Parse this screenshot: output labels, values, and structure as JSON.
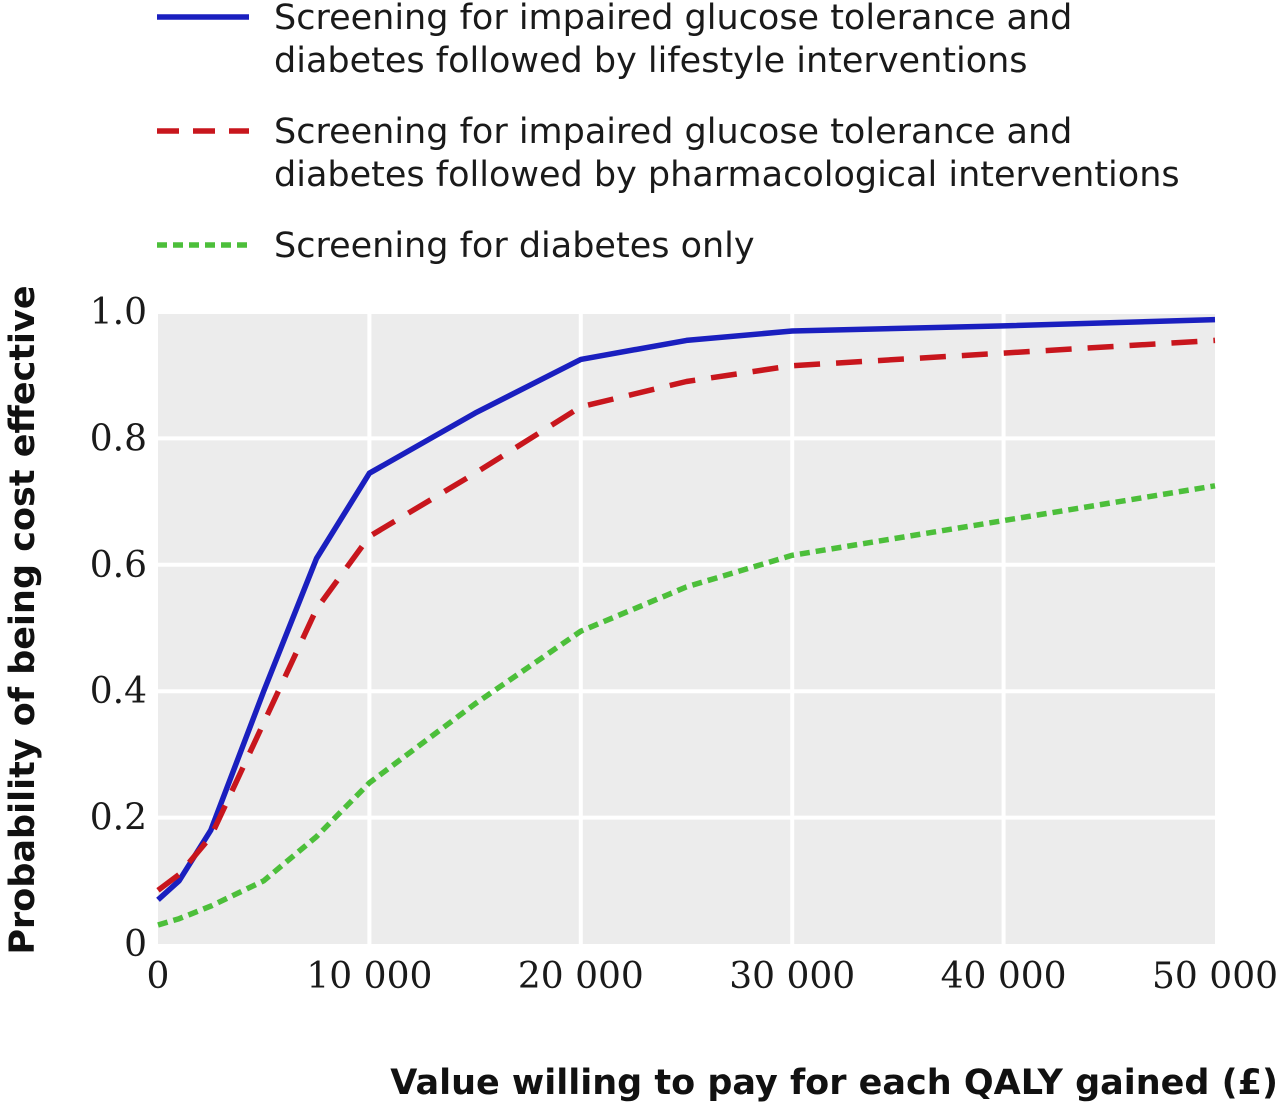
{
  "chart_data": {
    "type": "line",
    "title": "",
    "xlabel": "Value willing to pay for each QALY gained (£)",
    "ylabel": "Probability of being cost effective",
    "xlim": [
      0,
      50000
    ],
    "ylim": [
      0,
      1.0
    ],
    "x_ticks": [
      0,
      10000,
      20000,
      30000,
      40000,
      50000
    ],
    "x_tick_labels": [
      "0",
      "10 000",
      "20 000",
      "30 000",
      "40 000",
      "50 000"
    ],
    "y_ticks": [
      0,
      0.2,
      0.4,
      0.6,
      0.8,
      1.0
    ],
    "y_tick_labels": [
      "0",
      "0.2",
      "0.4",
      "0.6",
      "0.8",
      "1.0"
    ],
    "grid": true,
    "legend_position": "top",
    "series": [
      {
        "name": "Screening for impaired glucose tolerance and diabetes followed by lifestyle interventions",
        "name_lines": [
          "Screening for impaired glucose tolerance and",
          "diabetes followed by lifestyle interventions"
        ],
        "color": "#1a1fbf",
        "dash": "solid",
        "x": [
          0,
          1000,
          2500,
          5000,
          7500,
          10000,
          15000,
          20000,
          25000,
          30000,
          40000,
          50000
        ],
        "y": [
          0.07,
          0.1,
          0.18,
          0.4,
          0.61,
          0.745,
          0.84,
          0.925,
          0.955,
          0.97,
          0.978,
          0.988
        ]
      },
      {
        "name": "Screening for impaired glucose tolerance and diabetes followed by pharmacological interventions",
        "name_lines": [
          "Screening for impaired glucose tolerance and",
          "diabetes followed by pharmacological interventions"
        ],
        "color": "#c8161d",
        "dash": "dashed",
        "x": [
          0,
          1000,
          2500,
          5000,
          7500,
          10000,
          15000,
          20000,
          25000,
          30000,
          40000,
          50000
        ],
        "y": [
          0.085,
          0.11,
          0.17,
          0.35,
          0.53,
          0.645,
          0.745,
          0.85,
          0.89,
          0.915,
          0.935,
          0.955
        ]
      },
      {
        "name": "Screening for diabetes only",
        "name_lines": [
          "Screening for diabetes only"
        ],
        "color": "#4cbf3a",
        "dash": "dotted",
        "x": [
          0,
          1000,
          2500,
          5000,
          7500,
          10000,
          15000,
          20000,
          25000,
          30000,
          40000,
          50000
        ],
        "y": [
          0.03,
          0.04,
          0.06,
          0.1,
          0.17,
          0.255,
          0.38,
          0.495,
          0.565,
          0.615,
          0.67,
          0.725
        ]
      }
    ]
  }
}
